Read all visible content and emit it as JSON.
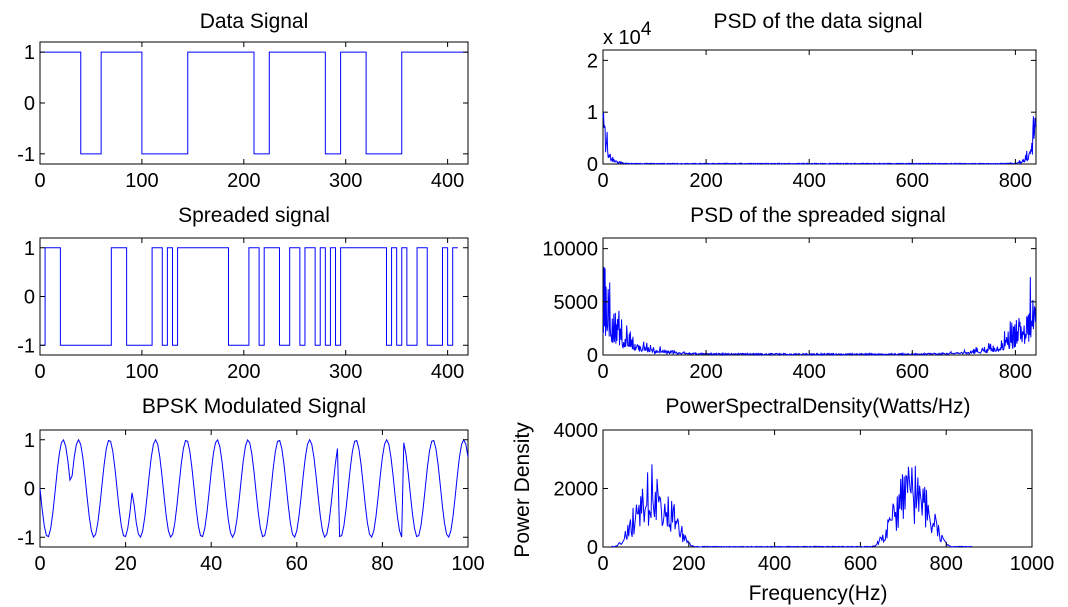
{
  "chart_data": [
    {
      "id": "data_signal",
      "type": "line",
      "title": "Data Signal",
      "xlim": [
        0,
        420
      ],
      "ylim": [
        -1.2,
        1.2
      ],
      "xticks": [
        0,
        100,
        200,
        300,
        400
      ],
      "yticks": [
        -1,
        0,
        1
      ],
      "xtick_labels": [
        "0",
        "100",
        "200",
        "300",
        "400"
      ],
      "ytick_labels": [
        "-1",
        "0",
        "1"
      ],
      "signal": {
        "kind": "square",
        "x_end": 420,
        "initial_level": 1,
        "transitions": [
          40,
          60,
          100,
          145,
          210,
          225,
          280,
          295,
          320,
          355
        ]
      }
    },
    {
      "id": "spreaded_signal",
      "type": "line",
      "title": "Spreaded signal",
      "xlim": [
        0,
        420
      ],
      "ylim": [
        -1.2,
        1.2
      ],
      "xticks": [
        0,
        100,
        200,
        300,
        400
      ],
      "yticks": [
        -1,
        0,
        1
      ],
      "xtick_labels": [
        "0",
        "100",
        "200",
        "300",
        "400"
      ],
      "ytick_labels": [
        "-1",
        "0",
        "1"
      ],
      "signal": {
        "kind": "square",
        "x_end": 410,
        "initial_level": -1,
        "transitions": [
          5,
          20,
          70,
          85,
          110,
          120,
          125,
          130,
          135,
          185,
          205,
          215,
          220,
          235,
          245,
          255,
          260,
          270,
          275,
          280,
          285,
          290,
          295,
          340,
          345,
          350,
          355,
          360,
          370,
          380,
          395,
          400,
          405
        ]
      }
    },
    {
      "id": "bpsk_signal",
      "type": "line",
      "title": "BPSK Modulated Signal",
      "xlim": [
        0,
        100
      ],
      "ylim": [
        -1.2,
        1.2
      ],
      "xticks": [
        0,
        20,
        40,
        60,
        80,
        100
      ],
      "yticks": [
        -1,
        0,
        1
      ],
      "xtick_labels": [
        "0",
        "20",
        "40",
        "60",
        "80",
        "100"
      ],
      "ytick_labels": [
        "-1",
        "0",
        "1"
      ],
      "signal": {
        "kind": "bpsk",
        "x_start": 0,
        "x_end": 100,
        "step": 0.5,
        "period": 7.2,
        "phase_flips": [
          7.5,
          22,
          70,
          85
        ]
      }
    },
    {
      "id": "psd_data",
      "type": "line",
      "title": "PSD of the data signal",
      "xlim": [
        0,
        840
      ],
      "ylim": [
        0,
        2.2
      ],
      "xticks": [
        0,
        200,
        400,
        600,
        800
      ],
      "yticks": [
        0,
        1,
        2
      ],
      "xtick_labels": [
        "0",
        "200",
        "400",
        "600",
        "800"
      ],
      "ytick_labels": [
        "0",
        "1",
        "2"
      ],
      "scale_prefix": "x 10",
      "scale_exponent": "4",
      "signal": {
        "kind": "spectrum",
        "n_bins": 840,
        "peak": 2.05,
        "width": 9,
        "floor": 0.015,
        "seed": 11
      }
    },
    {
      "id": "psd_spreaded",
      "type": "line",
      "title": "PSD of the spreaded signal",
      "xlim": [
        0,
        840
      ],
      "ylim": [
        0,
        11000
      ],
      "xticks": [
        0,
        200,
        400,
        600,
        800
      ],
      "yticks": [
        0,
        5000,
        10000
      ],
      "xtick_labels": [
        "0",
        "200",
        "400",
        "600",
        "800"
      ],
      "ytick_labels": [
        "0",
        "5000",
        "10000"
      ],
      "signal": {
        "kind": "spectrum",
        "n_bins": 840,
        "peak": 10500,
        "width": 42,
        "floor": 150,
        "seed": 23
      }
    },
    {
      "id": "power_spectral_density",
      "type": "line",
      "title": "PowerSpectralDensity(Watts/Hz)",
      "xlabel": "Frequency(Hz)",
      "ylabel": "Power Density",
      "xlim": [
        0,
        1000
      ],
      "ylim": [
        0,
        4000
      ],
      "xticks": [
        0,
        200,
        400,
        600,
        800,
        1000
      ],
      "yticks": [
        0,
        2000,
        4000
      ],
      "xtick_labels": [
        "0",
        "200",
        "400",
        "600",
        "800",
        "1000"
      ],
      "ytick_labels": [
        "0",
        "2000",
        "4000"
      ],
      "signal": {
        "kind": "bands",
        "x_start": 20,
        "x_end": 860,
        "step": 2,
        "centers": [
          120,
          720
        ],
        "halfwidth": 95,
        "peak": 2900,
        "floor": 25,
        "seed": 37
      }
    }
  ]
}
